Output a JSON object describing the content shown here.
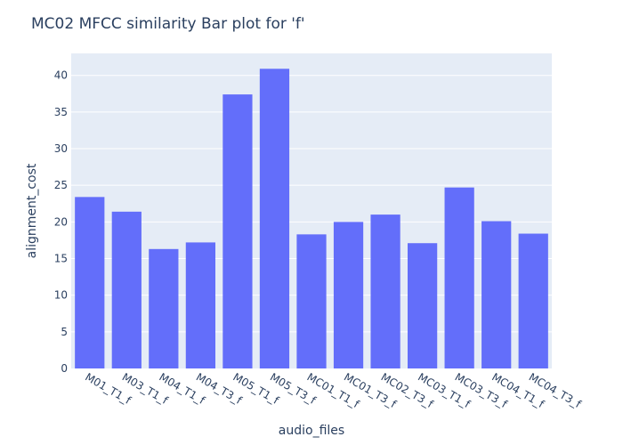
{
  "chart_data": {
    "type": "bar",
    "title": "MC02 MFCC similarity Bar plot for 'f'",
    "xlabel": "audio_files",
    "ylabel": "alignment_cost",
    "categories": [
      "M01_T1_f",
      "M03_T1_f",
      "M04_T1_f",
      "M04_T3_f",
      "M05_T1_f",
      "M05_T3_f",
      "MC01_T1_f",
      "MC01_T3_f",
      "MC02_T3_f",
      "MC03_T1_f",
      "MC03_T3_f",
      "MC04_T1_f",
      "MC04_T3_f"
    ],
    "values": [
      23.4,
      21.4,
      16.3,
      17.2,
      37.4,
      40.9,
      18.3,
      20.0,
      21.0,
      17.1,
      24.7,
      20.1,
      18.4
    ],
    "ylim": [
      0,
      43
    ],
    "yticks": [
      0,
      5,
      10,
      15,
      20,
      25,
      30,
      35,
      40
    ],
    "grid": true,
    "colors": {
      "bar": "#636efa",
      "plot_bg": "#e5ecf6",
      "grid": "#ffffff",
      "text": "#2a3f5f"
    }
  }
}
